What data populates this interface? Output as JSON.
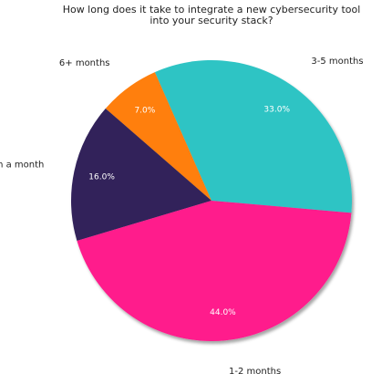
{
  "chart_data": {
    "type": "pie",
    "title": [
      "How long does it take to integrate a new cybersecurity tool",
      "into your security stack?"
    ],
    "categories": [
      "3-5 months",
      "6+ months",
      "Less than a month",
      "1-2 months"
    ],
    "values": [
      33,
      7,
      16,
      44
    ],
    "value_labels": [
      "33.0%",
      "7.0%",
      "16.0%",
      "44.0%"
    ],
    "colors": [
      "#2ec4c4",
      "#ff7f0e",
      "#30235a",
      "#ff1a8c"
    ]
  }
}
